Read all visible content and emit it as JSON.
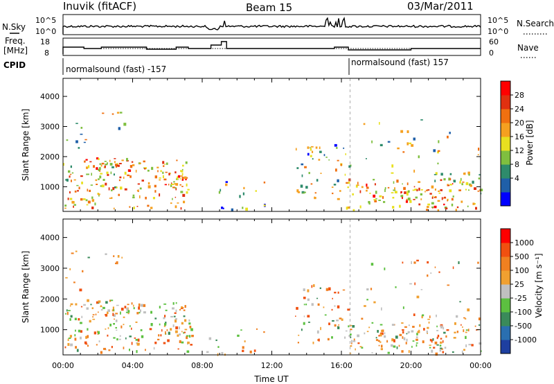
{
  "header": {
    "station": "Inuvik (fitACF)",
    "beam": "Beam 15",
    "date": "03/Mar/2011"
  },
  "left_labels": {
    "nsky": "N.Sky",
    "freq_line1": "Freq.",
    "freq_line2": "[MHz]",
    "cpid": "CPID"
  },
  "right_labels": {
    "nsearch": "N.Search",
    "nave": "Nave"
  },
  "noise_panel": {
    "left_ticks": [
      "10^5",
      "10^0"
    ],
    "right_ticks": [
      "10^5",
      "10^0"
    ]
  },
  "freq_panel": {
    "left_ticks": [
      "18",
      "8"
    ],
    "right_ticks": [
      "60",
      "0"
    ]
  },
  "cpid_panel": {
    "left_label": "normalsound (fast) -157",
    "right_label": "normalsound (fast) 157"
  },
  "chart_data": [
    {
      "type": "heatmap",
      "name": "power",
      "ylabel": "Slant Range [km]",
      "xlabel": "",
      "x_ticks": [
        "00:00",
        "04:00",
        "08:00",
        "12:00",
        "16:00",
        "20:00",
        "00:00"
      ],
      "y_ticks": [
        1000,
        2000,
        3000,
        4000
      ],
      "ylim": [
        180,
        4600
      ],
      "xlim_hours": [
        0,
        24
      ],
      "colorbar": {
        "label": "Power [dB]",
        "ticks": [
          "28",
          "24",
          "20",
          "16",
          "12",
          "8",
          "4"
        ],
        "colors": [
          "#0000ff",
          "#1f5fa8",
          "#2e8b6b",
          "#7fbf3f",
          "#e8e020",
          "#f5a020",
          "#f07010",
          "#e03010",
          "#ff0000"
        ]
      }
    },
    {
      "type": "heatmap",
      "name": "velocity",
      "ylabel": "Slant Range [km]",
      "xlabel": "Time UT",
      "x_ticks": [
        "00:00",
        "04:00",
        "08:00",
        "12:00",
        "16:00",
        "20:00",
        "00:00"
      ],
      "y_ticks": [
        1000,
        2000,
        3000,
        4000
      ],
      "ylim": [
        180,
        4600
      ],
      "xlim_hours": [
        0,
        24
      ],
      "colorbar": {
        "label": "Velocity [m s⁻¹]",
        "ticks": [
          "1000",
          "500",
          "100",
          "25",
          "-25",
          "-100",
          "-500",
          "-1000"
        ],
        "colors": [
          "#1e3fa0",
          "#2a6fb0",
          "#3a8a5a",
          "#5cc040",
          "#c0c0c0",
          "#f0a030",
          "#f08020",
          "#f05010",
          "#ff0000"
        ]
      }
    }
  ]
}
